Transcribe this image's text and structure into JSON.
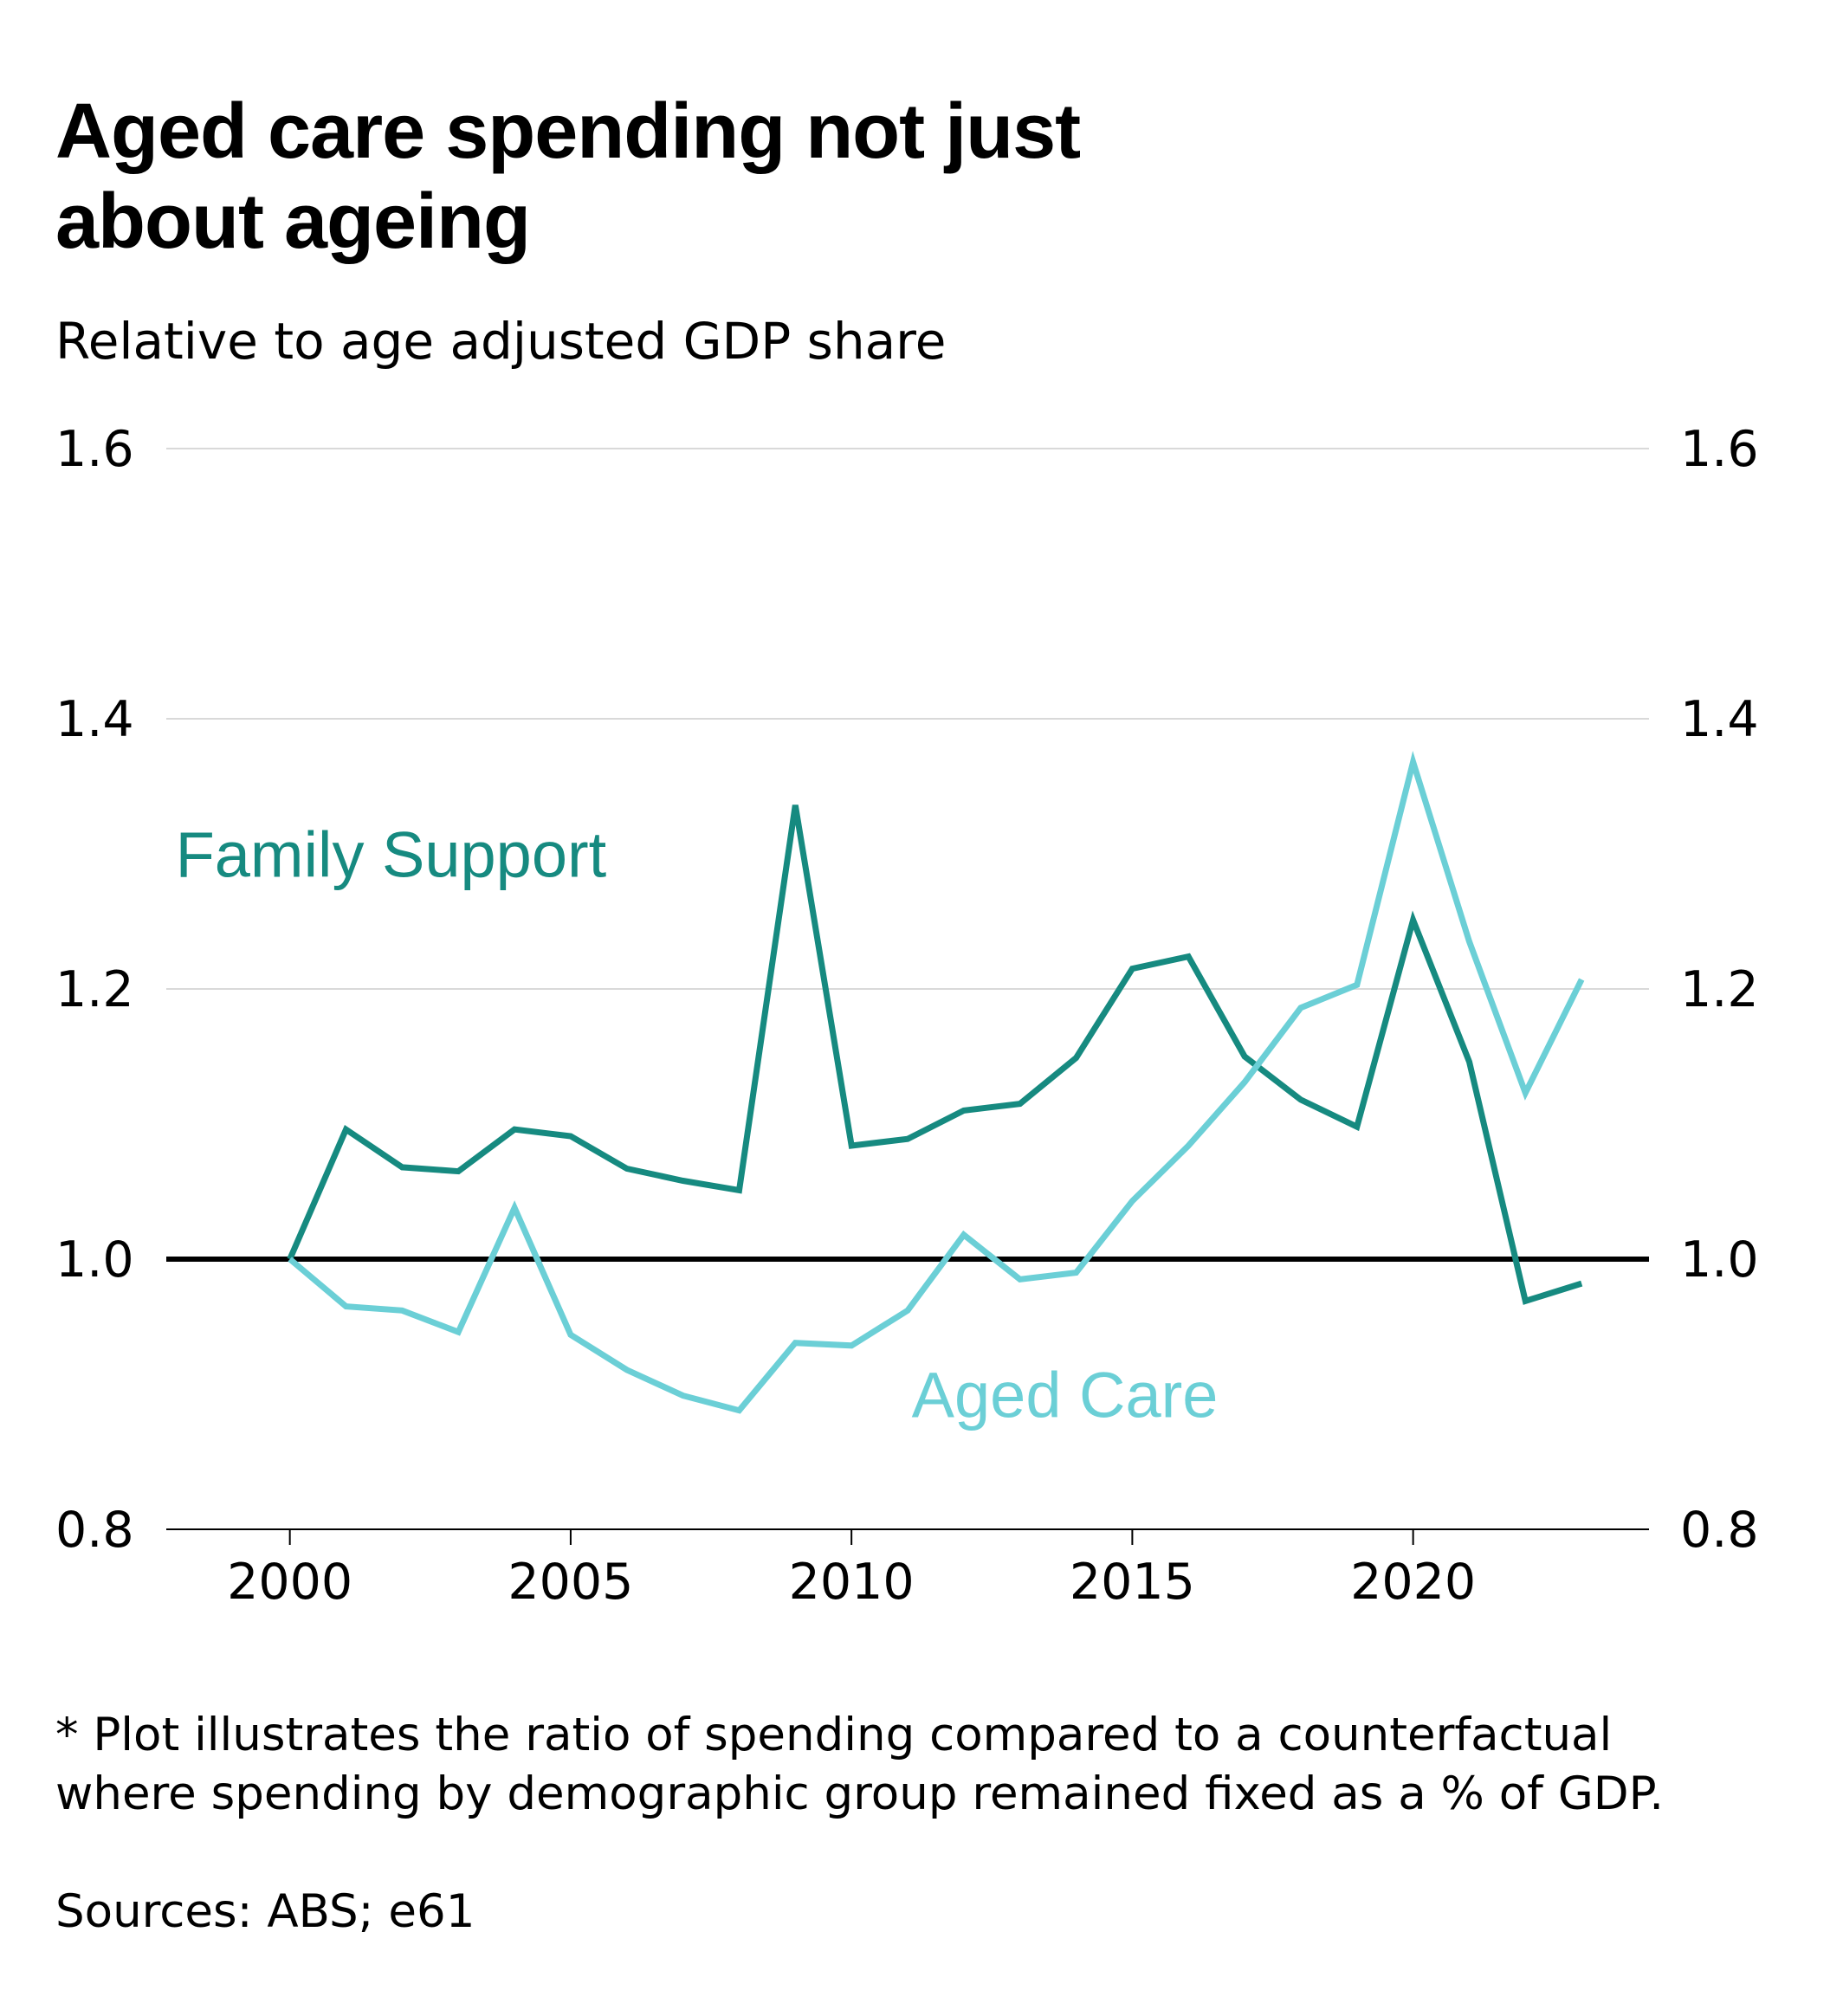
{
  "title": "Aged care spending not just about ageing",
  "subtitle": "Relative to age adjusted GDP share",
  "footnote": "* Plot illustrates the ratio of spending compared to a counterfactual where spending by demographic group remained fixed as a % of GDP.",
  "source": "Sources: ABS; e61",
  "colors": {
    "family_support": "#168a80",
    "aged_care": "#6bcfd6",
    "baseline": "#000000",
    "grid": "#d9d9d9"
  },
  "chart_data": {
    "type": "line",
    "xlim": [
      1997.8,
      2024.2
    ],
    "ylim": [
      0.8,
      1.6
    ],
    "x_ticks": [
      2000,
      2005,
      2010,
      2015,
      2020
    ],
    "x_tick_labels": [
      "2000",
      "2005",
      "2010",
      "2015",
      "2020"
    ],
    "y_ticks": [
      0.8,
      1.0,
      1.2,
      1.4,
      1.6
    ],
    "y_tick_labels": [
      "0.8",
      "1.0",
      "1.2",
      "1.4",
      "1.6"
    ],
    "y_axis_sides": [
      "left",
      "right"
    ],
    "grid": true,
    "reference_line": 1.0,
    "x": [
      2000,
      2001,
      2002,
      2003,
      2004,
      2005,
      2006,
      2007,
      2008,
      2009,
      2010,
      2011,
      2012,
      2013,
      2014,
      2015,
      2016,
      2017,
      2018,
      2019,
      2020,
      2021,
      2022,
      2023
    ],
    "series": [
      {
        "name": "Family Support",
        "color_key": "family_support",
        "values": [
          1.0,
          1.096,
          1.068,
          1.065,
          1.096,
          1.091,
          1.067,
          1.058,
          1.051,
          1.336,
          1.084,
          1.089,
          1.11,
          1.115,
          1.149,
          1.215,
          1.224,
          1.15,
          1.118,
          1.098,
          1.251,
          1.146,
          0.969,
          0.982
        ]
      },
      {
        "name": "Aged Care",
        "color_key": "aged_care",
        "values": [
          1.0,
          0.965,
          0.962,
          0.946,
          1.038,
          0.944,
          0.918,
          0.899,
          0.888,
          0.938,
          0.936,
          0.962,
          1.018,
          0.985,
          0.99,
          1.043,
          1.084,
          1.131,
          1.186,
          1.203,
          1.368,
          1.235,
          1.123,
          1.207
        ]
      }
    ]
  }
}
